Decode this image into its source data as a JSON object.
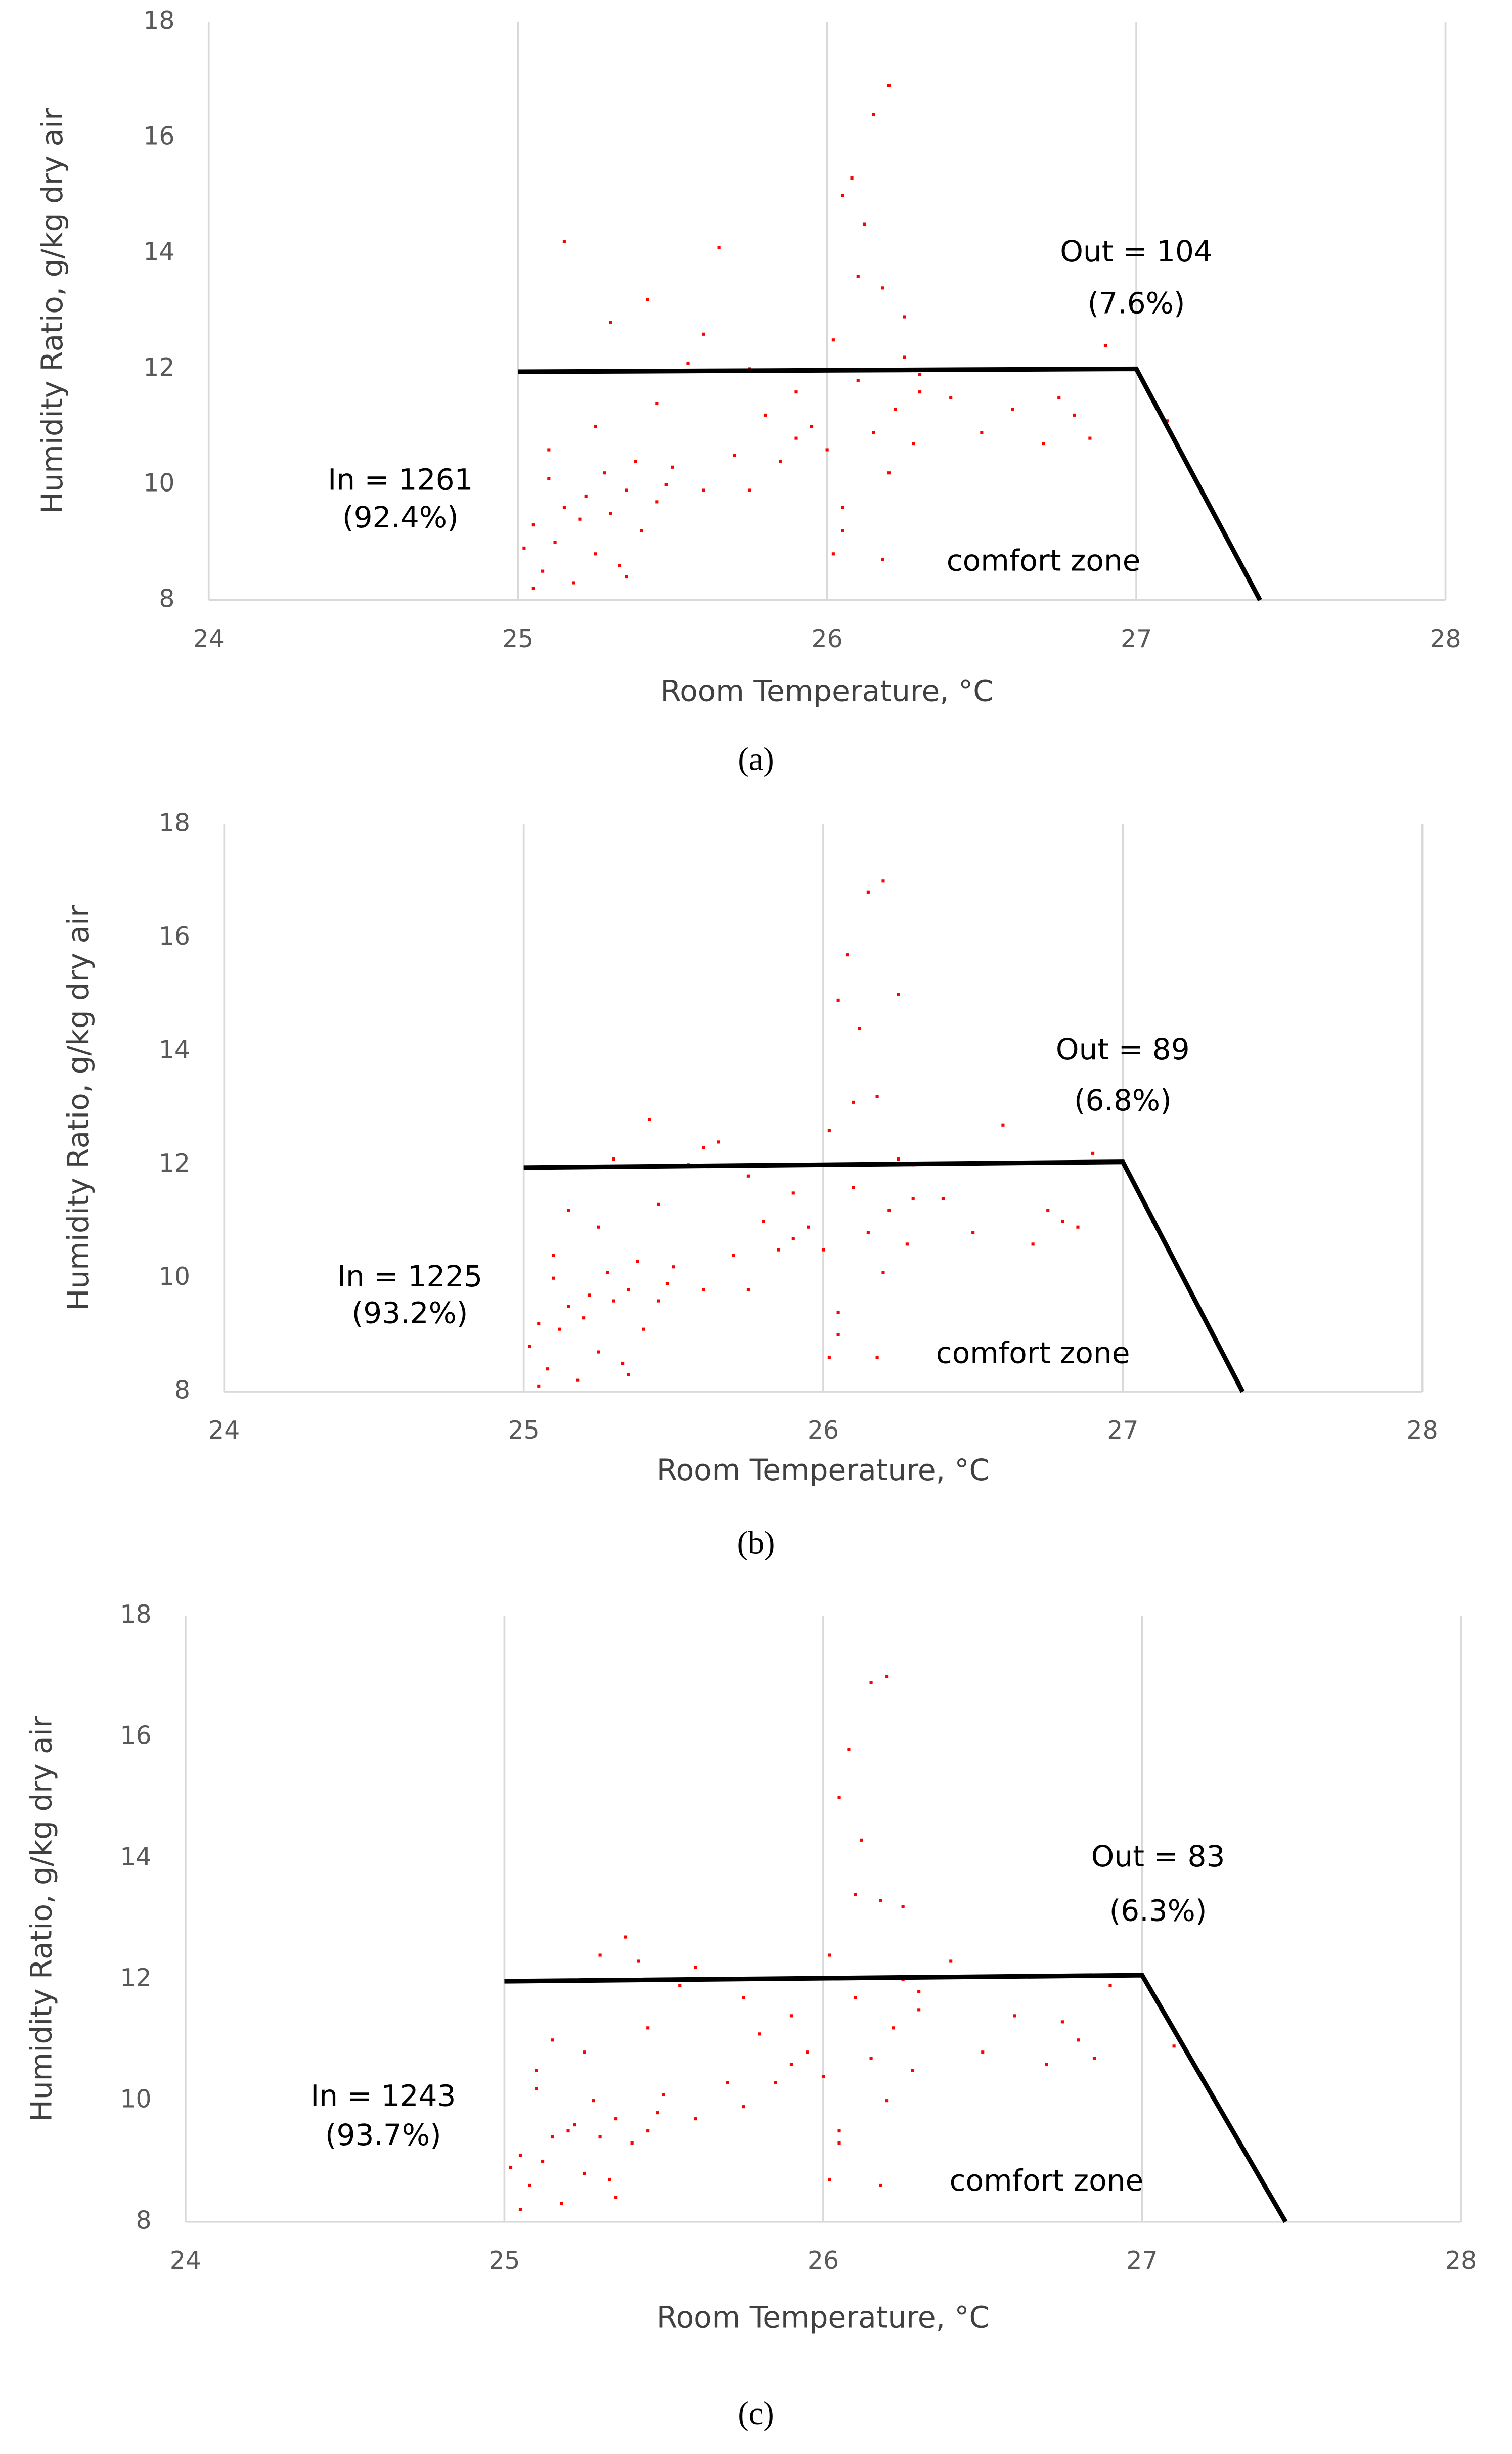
{
  "chart_data": [
    {
      "type": "scatter",
      "caption": "(a)",
      "x_label": "Room Temperature, °C",
      "y_label": "Humidity Ratio, g/kg dry air",
      "color": "#ff0000",
      "grid": "x",
      "xlim": [
        24,
        28
      ],
      "ylim": [
        8,
        18
      ],
      "xticks": [
        24,
        25,
        26,
        27,
        28
      ],
      "yticks": [
        8,
        10,
        12,
        14,
        16,
        18
      ],
      "annotations": [
        "In = 1261",
        "(92.4%)",
        "Out = 104",
        "(7.6%)",
        "comfort zone"
      ],
      "boundary": {
        "x": [
          25,
          27,
          27.4
        ],
        "y": [
          11.95,
          12,
          8
        ]
      },
      "x": [
        25.02,
        25.05,
        25.08,
        25.1,
        25.12,
        25.15,
        25.18,
        25.2,
        25.22,
        25.25,
        25.28,
        25.3,
        25.33,
        25.35,
        25.38,
        25.4,
        25.42,
        25.45,
        25.48,
        25.5,
        25.55,
        25.6,
        25.65,
        25.7,
        25.75,
        25.8,
        25.85,
        25.9,
        25.95,
        26.0,
        26.02,
        26.05,
        26.08,
        26.1,
        26.12,
        26.15,
        26.18,
        26.2,
        26.22,
        26.25,
        26.28,
        26.3,
        26.4,
        26.5,
        26.6,
        26.7,
        26.75,
        26.8,
        26.85,
        26.9,
        27.1,
        25.15,
        25.3,
        25.45,
        25.6,
        25.75,
        25.9,
        26.05,
        26.1,
        26.15,
        26.2,
        26.25,
        25.05,
        25.1,
        25.25,
        25.35,
        26.02,
        26.05,
        26.18,
        26.3
      ],
      "y": [
        8.9,
        9.3,
        8.5,
        10.1,
        9.0,
        9.6,
        8.3,
        9.4,
        9.8,
        8.8,
        10.2,
        9.5,
        8.6,
        9.9,
        10.4,
        9.2,
        13.2,
        9.7,
        10.0,
        10.3,
        12.1,
        9.9,
        14.1,
        10.5,
        9.9,
        11.2,
        10.4,
        10.8,
        11.0,
        10.6,
        12.5,
        9.2,
        15.3,
        11.8,
        14.5,
        10.9,
        13.4,
        16.9,
        11.3,
        12.2,
        10.7,
        11.9,
        11.5,
        10.9,
        11.3,
        10.7,
        11.5,
        11.2,
        10.8,
        12.4,
        11.1,
        14.2,
        12.8,
        11.4,
        12.6,
        12.0,
        11.6,
        15.0,
        13.6,
        16.4,
        10.2,
        12.9,
        8.2,
        10.6,
        11.0,
        8.4,
        8.8,
        9.6,
        8.7,
        11.6
      ]
    },
    {
      "type": "scatter",
      "caption": "(b)",
      "x_label": "Room Temperature, °C",
      "y_label": "Humidity Ratio, g/kg dry air",
      "color": "#ff0000",
      "grid": "x",
      "xlim": [
        24,
        28
      ],
      "ylim": [
        8,
        18
      ],
      "xticks": [
        24,
        25,
        26,
        27,
        28
      ],
      "yticks": [
        8,
        10,
        12,
        14,
        16,
        18
      ],
      "annotations": [
        "In = 1225",
        "(93.2%)",
        "Out = 89",
        "(6.8%)",
        "comfort zone"
      ],
      "boundary": {
        "x": [
          25,
          27,
          27.4
        ],
        "y": [
          11.95,
          12.05,
          8
        ]
      },
      "x": [
        25.02,
        25.05,
        25.08,
        25.1,
        25.12,
        25.15,
        25.18,
        25.2,
        25.22,
        25.25,
        25.28,
        25.3,
        25.33,
        25.35,
        25.38,
        25.4,
        25.42,
        25.45,
        25.48,
        25.5,
        25.55,
        25.6,
        25.65,
        25.7,
        25.75,
        25.8,
        25.85,
        25.9,
        25.95,
        26.0,
        26.02,
        26.05,
        26.08,
        26.1,
        26.12,
        26.15,
        26.18,
        26.2,
        26.22,
        26.25,
        26.28,
        26.3,
        26.4,
        26.5,
        26.6,
        26.7,
        26.75,
        26.8,
        26.85,
        26.9,
        27.1,
        25.15,
        25.3,
        25.45,
        25.6,
        25.75,
        25.9,
        26.05,
        26.1,
        26.15,
        26.2,
        26.25,
        25.05,
        25.1,
        25.25,
        25.35,
        26.02,
        26.05,
        26.18,
        26.3
      ],
      "y": [
        8.8,
        9.2,
        8.4,
        10.0,
        9.1,
        9.5,
        8.2,
        9.3,
        9.7,
        8.7,
        10.1,
        9.6,
        8.5,
        9.8,
        10.3,
        9.1,
        12.8,
        9.6,
        9.9,
        10.2,
        12.0,
        9.8,
        12.4,
        10.4,
        9.8,
        11.0,
        10.5,
        10.7,
        10.9,
        10.5,
        12.6,
        9.0,
        15.7,
        11.6,
        14.4,
        10.8,
        13.2,
        17.0,
        11.2,
        12.1,
        10.6,
        12.0,
        11.4,
        10.8,
        12.7,
        10.6,
        11.2,
        11.0,
        10.9,
        12.2,
        11.0,
        11.2,
        12.1,
        11.3,
        12.3,
        11.8,
        11.5,
        14.9,
        13.1,
        16.8,
        10.1,
        15.0,
        8.1,
        10.4,
        10.9,
        8.3,
        8.6,
        9.4,
        8.6,
        11.4
      ]
    },
    {
      "type": "scatter",
      "caption": "(c)",
      "x_label": "Room Temperature, °C",
      "y_label": "Humidity Ratio, g/kg dry air",
      "color": "#ff0000",
      "grid": "x",
      "xlim": [
        24,
        28
      ],
      "ylim": [
        8,
        18
      ],
      "xticks": [
        24,
        25,
        26,
        27,
        28
      ],
      "yticks": [
        8,
        10,
        12,
        14,
        16,
        18
      ],
      "annotations": [
        "In = 1243",
        "(93.7%)",
        "Out = 83",
        "(6.3%)",
        "comfort zone"
      ],
      "boundary": {
        "x": [
          25,
          27,
          27.45
        ],
        "y": [
          11.97,
          12.07,
          8
        ]
      },
      "x": [
        25.02,
        25.05,
        25.08,
        25.1,
        25.12,
        25.15,
        25.18,
        25.2,
        25.22,
        25.25,
        25.28,
        25.3,
        25.33,
        25.35,
        25.38,
        25.4,
        25.42,
        25.45,
        25.48,
        25.5,
        25.55,
        25.6,
        25.65,
        25.7,
        25.75,
        25.8,
        25.85,
        25.9,
        25.95,
        26.0,
        26.02,
        26.05,
        26.08,
        26.1,
        26.12,
        26.15,
        26.18,
        26.2,
        26.22,
        26.25,
        26.28,
        26.3,
        26.4,
        26.5,
        26.6,
        26.7,
        26.75,
        26.8,
        26.85,
        26.9,
        27.1,
        25.15,
        25.3,
        25.45,
        25.6,
        25.75,
        25.9,
        26.05,
        26.1,
        26.15,
        26.2,
        26.25,
        25.05,
        25.1,
        25.25,
        25.35,
        26.02,
        26.05,
        26.18,
        26.3
      ],
      "y": [
        8.9,
        9.1,
        8.6,
        10.2,
        9.0,
        9.4,
        8.3,
        9.5,
        9.6,
        8.8,
        10.0,
        9.4,
        8.7,
        9.7,
        12.7,
        9.3,
        12.3,
        9.5,
        9.8,
        10.1,
        11.9,
        9.7,
        12.0,
        10.3,
        9.9,
        11.1,
        10.3,
        10.6,
        10.8,
        10.4,
        12.4,
        9.3,
        15.8,
        11.7,
        14.3,
        10.7,
        13.3,
        17.0,
        11.2,
        12.0,
        10.5,
        11.8,
        12.3,
        10.8,
        11.4,
        10.6,
        11.3,
        11.0,
        10.7,
        11.9,
        10.9,
        11.0,
        12.4,
        11.2,
        12.2,
        11.7,
        11.4,
        15.0,
        13.4,
        16.9,
        10.0,
        13.2,
        8.2,
        10.5,
        10.8,
        8.4,
        8.7,
        9.5,
        8.6,
        11.5
      ]
    }
  ]
}
